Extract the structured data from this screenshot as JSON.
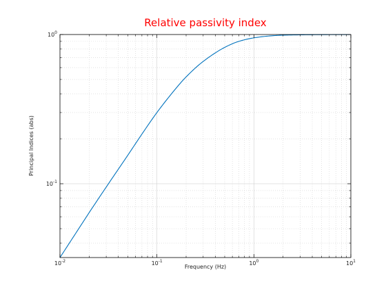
{
  "chart_data": {
    "type": "line",
    "title": "Relative passivity index",
    "xlabel": "Frequency (Hz)",
    "ylabel": "Principal Indices (abs)",
    "xscale": "log",
    "yscale": "log",
    "xlim": [
      0.01,
      10
    ],
    "ylim": [
      0.032,
      1
    ],
    "grid": true,
    "xticks": [
      {
        "value": 0.01,
        "base": "10",
        "exp": "-2"
      },
      {
        "value": 0.1,
        "base": "10",
        "exp": "-1"
      },
      {
        "value": 1,
        "base": "10",
        "exp": "0"
      },
      {
        "value": 10,
        "base": "10",
        "exp": "1"
      }
    ],
    "yticks": [
      {
        "value": 0.1,
        "base": "10",
        "exp": "-1"
      },
      {
        "value": 1,
        "base": "10",
        "exp": "0"
      }
    ],
    "series": [
      {
        "color": "#0072bd",
        "x": [
          0.01,
          0.015,
          0.02,
          0.03,
          0.05,
          0.07,
          0.1,
          0.15,
          0.2,
          0.3,
          0.5,
          0.7,
          1,
          1.5,
          2,
          3,
          5,
          10
        ],
        "y": [
          0.032,
          0.048,
          0.064,
          0.095,
          0.155,
          0.215,
          0.3,
          0.42,
          0.52,
          0.66,
          0.82,
          0.9,
          0.95,
          0.98,
          0.99,
          0.995,
          0.998,
          1.0
        ]
      }
    ]
  },
  "colors": {
    "title": "#ff0000",
    "line": "#0072bd",
    "axis": "#000000",
    "grid": "#d0d0d0"
  }
}
